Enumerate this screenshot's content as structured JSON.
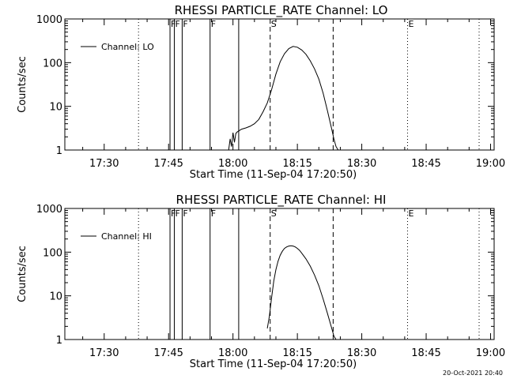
{
  "footer": {
    "timestamp": "20-Oct-2021 20:40"
  },
  "chart_data": [
    {
      "type": "line",
      "title": "RHESSI PARTICLE_RATE Channel: LO",
      "xlabel": "Start Time (11-Sep-04 17:20:50)",
      "ylabel": "Counts/sec",
      "yscale": "log",
      "xlim": [
        "17:20:50",
        "19:00:50"
      ],
      "ylim": [
        1,
        1000
      ],
      "x_ticks": [
        "17:30",
        "17:45",
        "18:00",
        "18:15",
        "18:30",
        "18:45",
        "19:00"
      ],
      "y_ticks": [
        "1",
        "10",
        "100",
        "1000"
      ],
      "legend_position": "top-left",
      "series": [
        {
          "name": "Channel: LO",
          "x": [
            "17:59:00",
            "17:59:20",
            "17:59:40",
            "18:00:00",
            "18:00:20",
            "18:00:40",
            "18:01:00",
            "18:01:30",
            "18:02:00",
            "18:03:00",
            "18:04:00",
            "18:05:00",
            "18:06:00",
            "18:07:00",
            "18:08:00",
            "18:09:00",
            "18:10:00",
            "18:11:00",
            "18:12:00",
            "18:13:00",
            "18:14:00",
            "18:15:00",
            "18:16:00",
            "18:17:00",
            "18:18:00",
            "18:19:00",
            "18:20:00",
            "18:21:00",
            "18:22:00",
            "18:23:00",
            "18:23:30",
            "18:24:00",
            "18:24:30"
          ],
          "values": [
            1,
            1.8,
            1.2,
            2.5,
            1.5,
            2.4,
            2.6,
            2.8,
            3.0,
            3.2,
            3.5,
            4.0,
            5.0,
            7.5,
            12,
            24,
            55,
            105,
            160,
            210,
            235,
            225,
            195,
            155,
            110,
            72,
            42,
            20,
            8,
            3,
            1.8,
            1.2,
            1
          ]
        }
      ],
      "vertical_lines": [
        {
          "time": "17:38:00",
          "style": "dotted",
          "label": ""
        },
        {
          "time": "17:45:20",
          "style": "solid",
          "label": "F"
        },
        {
          "time": "17:46:20",
          "style": "solid",
          "label": "F"
        },
        {
          "time": "17:48:10",
          "style": "solid",
          "label": "F"
        },
        {
          "time": "17:54:40",
          "style": "solid",
          "label": "F"
        },
        {
          "time": "18:01:20",
          "style": "solid",
          "label": ""
        },
        {
          "time": "18:08:40",
          "style": "dashed",
          "label": "S"
        },
        {
          "time": "18:23:20",
          "style": "dashed",
          "label": ""
        },
        {
          "time": "18:40:40",
          "style": "dotted",
          "label": "E"
        },
        {
          "time": "18:57:20",
          "style": "dotted",
          "label": ""
        }
      ]
    },
    {
      "type": "line",
      "title": "RHESSI PARTICLE_RATE Channel: HI",
      "xlabel": "Start Time (11-Sep-04 17:20:50)",
      "ylabel": "Counts/sec",
      "yscale": "log",
      "xlim": [
        "17:20:50",
        "19:00:50"
      ],
      "ylim": [
        1,
        1000
      ],
      "x_ticks": [
        "17:30",
        "17:45",
        "18:00",
        "18:15",
        "18:30",
        "18:45",
        "19:00"
      ],
      "y_ticks": [
        "1",
        "10",
        "100",
        "1000"
      ],
      "legend_position": "top-left",
      "series": [
        {
          "name": "Channel: HI",
          "x": [
            "18:08:00",
            "18:08:30",
            "18:09:00",
            "18:09:30",
            "18:10:00",
            "18:10:30",
            "18:11:00",
            "18:11:30",
            "18:12:00",
            "18:12:30",
            "18:13:00",
            "18:13:30",
            "18:14:00",
            "18:14:30",
            "18:15:00",
            "18:15:30",
            "18:16:00",
            "18:17:00",
            "18:18:00",
            "18:19:00",
            "18:20:00",
            "18:21:00",
            "18:22:00",
            "18:23:00",
            "18:23:30",
            "18:24:00"
          ],
          "values": [
            1.8,
            3.5,
            9,
            22,
            40,
            62,
            85,
            105,
            122,
            132,
            138,
            140,
            138,
            132,
            122,
            110,
            95,
            70,
            48,
            30,
            17,
            8.5,
            4,
            1.8,
            1.2,
            1
          ]
        }
      ],
      "vertical_lines": [
        {
          "time": "17:38:00",
          "style": "dotted",
          "label": ""
        },
        {
          "time": "17:45:20",
          "style": "solid",
          "label": "F"
        },
        {
          "time": "17:46:20",
          "style": "solid",
          "label": "F"
        },
        {
          "time": "17:48:10",
          "style": "solid",
          "label": "F"
        },
        {
          "time": "17:54:40",
          "style": "solid",
          "label": "F"
        },
        {
          "time": "18:01:20",
          "style": "solid",
          "label": ""
        },
        {
          "time": "18:08:40",
          "style": "dashed",
          "label": "S"
        },
        {
          "time": "18:23:20",
          "style": "dashed",
          "label": ""
        },
        {
          "time": "18:40:40",
          "style": "dotted",
          "label": "E"
        },
        {
          "time": "18:57:20",
          "style": "dotted",
          "label": ""
        }
      ]
    }
  ]
}
